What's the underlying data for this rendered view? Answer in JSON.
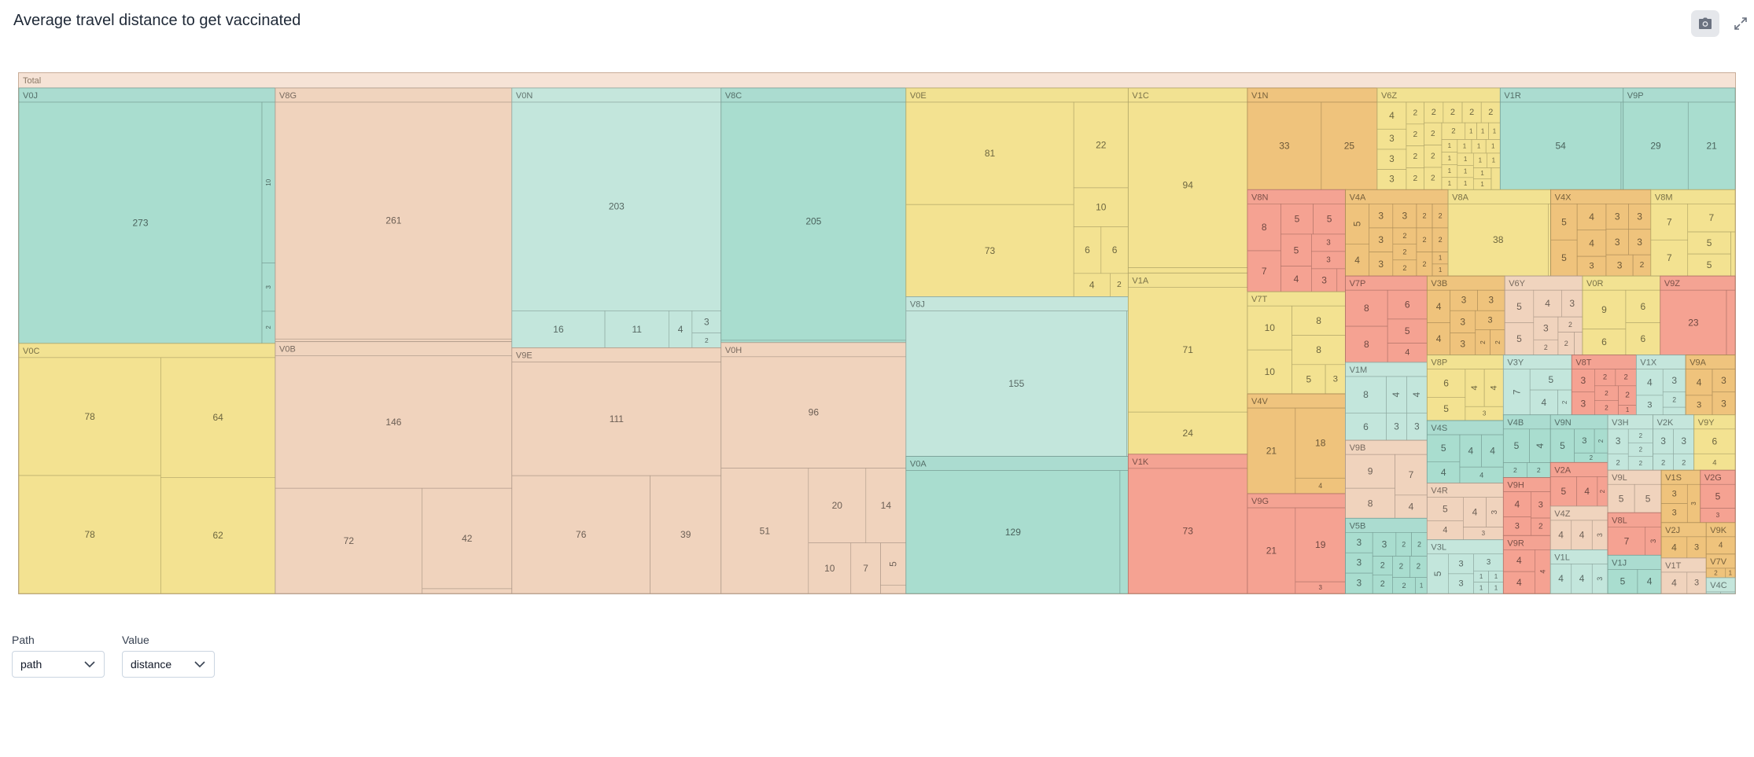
{
  "title": "Average travel distance to get vaccinated",
  "toolbar": {
    "camera_icon": "camera-icon",
    "expand_icon": "expand-icon"
  },
  "controls": {
    "path_label": "Path",
    "path_value": "path",
    "value_label": "Value",
    "value_value": "distance"
  },
  "chart_data": {
    "type": "treemap",
    "root": "Total",
    "groups": [
      {
        "name": "V9H",
        "color": "#f4a090",
        "leaves": [
          4,
          3,
          3,
          2
        ]
      },
      {
        "name": "V6Z",
        "color": "#f2e28f",
        "leaves": [
          2,
          2,
          2,
          2,
          1,
          2,
          2,
          1,
          1,
          2,
          1,
          1,
          1,
          1,
          1,
          1,
          1,
          1,
          1,
          3,
          2,
          2,
          1,
          1,
          1,
          1,
          4,
          3,
          2,
          2,
          2,
          3,
          1,
          1
        ]
      },
      {
        "name": "V4A",
        "color": "#eec27a",
        "leaves": [
          2,
          2,
          3,
          2,
          2,
          2,
          2,
          3,
          2,
          2,
          3,
          1,
          4,
          3,
          5,
          1
        ]
      },
      {
        "name": "V5B",
        "color": "#a7dccf",
        "leaves": [
          3,
          3,
          2,
          1,
          2,
          2,
          2,
          2,
          3,
          2,
          2,
          3
        ]
      },
      {
        "name": "V1X",
        "color": "#c2e6dc",
        "leaves": [
          4,
          3,
          3,
          2,
          1
        ]
      },
      {
        "name": "V9E",
        "color": "#efd3bd",
        "leaves": [
          76,
          39,
          111
        ]
      },
      {
        "name": "V2A",
        "color": "#f4a090",
        "leaves": [
          5,
          4,
          2
        ]
      },
      {
        "name": "V0C",
        "color": "#f2e28f",
        "leaves": [
          78,
          78,
          64,
          62
        ]
      },
      {
        "name": "V3B",
        "color": "#eec27a",
        "leaves": [
          2,
          3,
          3,
          3,
          2,
          3,
          4,
          4,
          3
        ]
      },
      {
        "name": "V9P",
        "color": "#a7dccf",
        "leaves": [
          21,
          29
        ]
      },
      {
        "name": "V1M",
        "color": "#c2e6dc",
        "leaves": [
          3,
          3,
          6,
          8,
          4,
          4
        ]
      },
      {
        "name": "V0H",
        "color": "#efd3bd",
        "leaves": [
          14,
          5,
          10,
          51,
          96,
          7,
          20,
          1
        ]
      },
      {
        "name": "V8N",
        "color": "#f4a090",
        "leaves": [
          5,
          3,
          3,
          5,
          4,
          3,
          1,
          5,
          7,
          8
        ]
      },
      {
        "name": "V0E",
        "color": "#f2e28f",
        "leaves": [
          2,
          10,
          6,
          4,
          6,
          81,
          73,
          22
        ]
      },
      {
        "name": "V9A",
        "color": "#eec27a",
        "leaves": [
          3,
          3,
          4,
          3
        ]
      },
      {
        "name": "V0J",
        "color": "#a7dccf",
        "leaves": [
          10,
          3,
          273,
          2
        ]
      },
      {
        "name": "V2K",
        "color": "#c2e6dc",
        "leaves": [
          3,
          3,
          2,
          2
        ]
      },
      {
        "name": "V6Y",
        "color": "#efd3bd",
        "leaves": [
          3,
          3,
          2,
          5,
          5,
          4,
          2,
          2,
          1
        ]
      },
      {
        "name": "V9R",
        "color": "#f4a090",
        "leaves": [
          4,
          4,
          4
        ]
      },
      {
        "name": "V0R",
        "color": "#f2e28f",
        "leaves": [
          6,
          9,
          6,
          6
        ]
      },
      {
        "name": "V4X",
        "color": "#eec27a",
        "leaves": [
          3,
          4,
          3,
          2,
          3,
          3,
          5,
          3,
          5,
          4,
          3
        ]
      },
      {
        "name": "V4S",
        "color": "#a7dccf",
        "leaves": [
          4,
          4,
          4,
          5,
          4
        ]
      },
      {
        "name": "V4C",
        "color": "#c2e6dc",
        "leaves": [
          1,
          1
        ]
      },
      {
        "name": "V4R",
        "color": "#efd3bd",
        "leaves": [
          3,
          3,
          5,
          4,
          4
        ]
      },
      {
        "name": "V8T",
        "color": "#f4a090",
        "leaves": [
          2,
          3,
          3,
          2,
          2,
          2,
          1,
          2
        ]
      },
      {
        "name": "V9Y",
        "color": "#f2e28f",
        "leaves": [
          6,
          4
        ]
      },
      {
        "name": "V4V",
        "color": "#eec27a",
        "leaves": [
          4,
          21,
          18
        ]
      },
      {
        "name": "V1J",
        "color": "#a7dccf",
        "leaves": [
          4,
          5
        ]
      },
      {
        "name": "V3L",
        "color": "#c2e6dc",
        "leaves": [
          3,
          5,
          3,
          3,
          1,
          1,
          1,
          1
        ]
      },
      {
        "name": "V4Z",
        "color": "#efd3bd",
        "leaves": [
          4,
          4,
          3
        ]
      },
      {
        "name": "V7P",
        "color": "#f4a090",
        "leaves": [
          5,
          6,
          8,
          8,
          4
        ]
      },
      {
        "name": "V8P",
        "color": "#f2e28f",
        "leaves": [
          6,
          4,
          5,
          4,
          3
        ]
      },
      {
        "name": "V1S",
        "color": "#eec27a",
        "leaves": [
          3,
          3,
          3
        ]
      },
      {
        "name": "V4B",
        "color": "#a7dccf",
        "leaves": [
          2,
          4,
          5,
          2
        ]
      },
      {
        "name": "V1L",
        "color": "#c2e6dc",
        "leaves": [
          4,
          3,
          4
        ]
      },
      {
        "name": "V0B",
        "color": "#efd3bd",
        "leaves": [
          146,
          42,
          72,
          2
        ]
      },
      {
        "name": "V9Z",
        "color": "#f4a090",
        "leaves": [
          3,
          23
        ]
      },
      {
        "name": "V7T",
        "color": "#f2e28f",
        "leaves": [
          3,
          10,
          8,
          8,
          5,
          10
        ]
      },
      {
        "name": "V2J",
        "color": "#eec27a",
        "leaves": [
          3,
          4
        ]
      },
      {
        "name": "V9N",
        "color": "#a7dccf",
        "leaves": [
          2,
          3,
          5,
          2
        ]
      },
      {
        "name": "V3H",
        "color": "#c2e6dc",
        "leaves": [
          2,
          2,
          2,
          3,
          2
        ]
      },
      {
        "name": "V9B",
        "color": "#efd3bd",
        "leaves": [
          7,
          8,
          4,
          9
        ]
      },
      {
        "name": "V1K",
        "color": "#f4a090",
        "leaves": [
          73
        ]
      },
      {
        "name": "V1C",
        "color": "#f2e28f",
        "leaves": [
          94,
          3
        ]
      },
      {
        "name": "V9K",
        "color": "#eec27a",
        "leaves": [
          4
        ]
      },
      {
        "name": "V8C",
        "color": "#a7dccf",
        "leaves": [
          205,
          2
        ]
      },
      {
        "name": "V0N",
        "color": "#c2e6dc",
        "leaves": [
          4,
          3,
          11,
          16,
          203,
          2
        ]
      },
      {
        "name": "V8G",
        "color": "#efd3bd",
        "leaves": [
          261,
          3
        ]
      },
      {
        "name": "V2G",
        "color": "#f4a090",
        "leaves": [
          3,
          5
        ]
      },
      {
        "name": "V8M",
        "color": "#f2e28f",
        "leaves": [
          7,
          1,
          7,
          5,
          7,
          5
        ]
      },
      {
        "name": "V7V",
        "color": "#eec27a",
        "leaves": [
          2,
          1
        ]
      },
      {
        "name": "V1R",
        "color": "#a7dccf",
        "leaves": [
          54,
          1
        ]
      },
      {
        "name": "V8J",
        "color": "#c2e6dc",
        "leaves": [
          155,
          1
        ]
      },
      {
        "name": "V1T",
        "color": "#efd3bd",
        "leaves": [
          3,
          4
        ]
      },
      {
        "name": "V9G",
        "color": "#f4a090",
        "leaves": [
          3,
          19,
          21
        ]
      },
      {
        "name": "V8A",
        "color": "#f2e28f",
        "leaves": [
          38,
          1
        ]
      },
      {
        "name": "V1N",
        "color": "#eec27a",
        "leaves": [
          33,
          25
        ]
      },
      {
        "name": "V3Y",
        "color": "#c2e6dc",
        "leaves": [
          2,
          4,
          5,
          7
        ]
      },
      {
        "name": "V9L",
        "color": "#efd3bd",
        "leaves": [
          5,
          5
        ]
      },
      {
        "name": "V8L",
        "color": "#f4a090",
        "leaves": [
          3,
          7
        ]
      },
      {
        "name": "V0A",
        "color": "#a7dccf",
        "leaves": [
          129,
          5
        ]
      },
      {
        "name": "V1A",
        "color": "#f2e28f",
        "leaves": [
          71,
          24
        ]
      }
    ]
  }
}
